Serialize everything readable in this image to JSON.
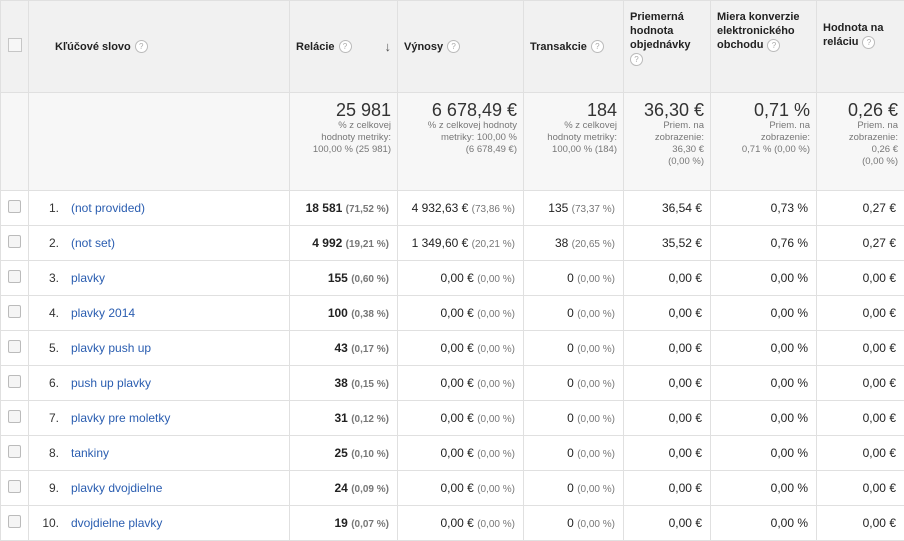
{
  "headers": {
    "keyword": "Kľúčové slovo",
    "sessions": "Relácie",
    "revenue": "Výnosy",
    "transactions": "Transakcie",
    "aov": "Priemerná hodnota objednávky",
    "conversion": "Miera konverzie elektronického obchodu",
    "per_session": "Hodnota na reláciu"
  },
  "help_glyph": "?",
  "sort_glyph": "↓",
  "totals": {
    "sessions": {
      "value": "25 981",
      "line1": "% z celkovej",
      "line2": "hodnoty metriky:",
      "line3": "100,00 % (25 981)"
    },
    "revenue": {
      "value": "6 678,49 €",
      "line1": "% z celkovej hodnoty",
      "line2": "metriky: 100,00 %",
      "line3": "(6 678,49 €)"
    },
    "transactions": {
      "value": "184",
      "line1": "% z celkovej",
      "line2": "hodnoty metriky:",
      "line3": "100,00 % (184)"
    },
    "aov": {
      "value": "36,30 €",
      "line1": "Priem. na",
      "line2": "zobrazenie:",
      "line3": "36,30 €",
      "line4": "(0,00 %)"
    },
    "conversion": {
      "value": "0,71 %",
      "line1": "Priem. na",
      "line2": "zobrazenie:",
      "line3": "0,71 % (0,00 %)"
    },
    "per_session": {
      "value": "0,26 €",
      "line1": "Priem. na",
      "line2": "zobrazenie:",
      "line3": "0,26 €",
      "line4": "(0,00 %)"
    }
  },
  "rows": [
    {
      "n": "1.",
      "kw": "(not provided)",
      "ses": "18 581",
      "ses_p": "(71,52 %)",
      "rev": "4 932,63 €",
      "rev_p": "(73,86 %)",
      "tr": "135",
      "tr_p": "(73,37 %)",
      "aov": "36,54 €",
      "conv": "0,73 %",
      "ps": "0,27 €"
    },
    {
      "n": "2.",
      "kw": "(not set)",
      "ses": "4 992",
      "ses_p": "(19,21 %)",
      "rev": "1 349,60 €",
      "rev_p": "(20,21 %)",
      "tr": "38",
      "tr_p": "(20,65 %)",
      "aov": "35,52 €",
      "conv": "0,76 %",
      "ps": "0,27 €"
    },
    {
      "n": "3.",
      "kw": "plavky",
      "ses": "155",
      "ses_p": "(0,60 %)",
      "rev": "0,00 €",
      "rev_p": "(0,00 %)",
      "tr": "0",
      "tr_p": "(0,00 %)",
      "aov": "0,00 €",
      "conv": "0,00 %",
      "ps": "0,00 €"
    },
    {
      "n": "4.",
      "kw": "plavky 2014",
      "ses": "100",
      "ses_p": "(0,38 %)",
      "rev": "0,00 €",
      "rev_p": "(0,00 %)",
      "tr": "0",
      "tr_p": "(0,00 %)",
      "aov": "0,00 €",
      "conv": "0,00 %",
      "ps": "0,00 €"
    },
    {
      "n": "5.",
      "kw": "plavky push up",
      "ses": "43",
      "ses_p": "(0,17 %)",
      "rev": "0,00 €",
      "rev_p": "(0,00 %)",
      "tr": "0",
      "tr_p": "(0,00 %)",
      "aov": "0,00 €",
      "conv": "0,00 %",
      "ps": "0,00 €"
    },
    {
      "n": "6.",
      "kw": "push up plavky",
      "ses": "38",
      "ses_p": "(0,15 %)",
      "rev": "0,00 €",
      "rev_p": "(0,00 %)",
      "tr": "0",
      "tr_p": "(0,00 %)",
      "aov": "0,00 €",
      "conv": "0,00 %",
      "ps": "0,00 €"
    },
    {
      "n": "7.",
      "kw": "plavky pre moletky",
      "ses": "31",
      "ses_p": "(0,12 %)",
      "rev": "0,00 €",
      "rev_p": "(0,00 %)",
      "tr": "0",
      "tr_p": "(0,00 %)",
      "aov": "0,00 €",
      "conv": "0,00 %",
      "ps": "0,00 €"
    },
    {
      "n": "8.",
      "kw": "tankiny",
      "ses": "25",
      "ses_p": "(0,10 %)",
      "rev": "0,00 €",
      "rev_p": "(0,00 %)",
      "tr": "0",
      "tr_p": "(0,00 %)",
      "aov": "0,00 €",
      "conv": "0,00 %",
      "ps": "0,00 €"
    },
    {
      "n": "9.",
      "kw": "plavky dvojdielne",
      "ses": "24",
      "ses_p": "(0,09 %)",
      "rev": "0,00 €",
      "rev_p": "(0,00 %)",
      "tr": "0",
      "tr_p": "(0,00 %)",
      "aov": "0,00 €",
      "conv": "0,00 %",
      "ps": "0,00 €"
    },
    {
      "n": "10.",
      "kw": "dvojdielne plavky",
      "ses": "19",
      "ses_p": "(0,07 %)",
      "rev": "0,00 €",
      "rev_p": "(0,00 %)",
      "tr": "0",
      "tr_p": "(0,00 %)",
      "aov": "0,00 €",
      "conv": "0,00 %",
      "ps": "0,00 €"
    }
  ]
}
